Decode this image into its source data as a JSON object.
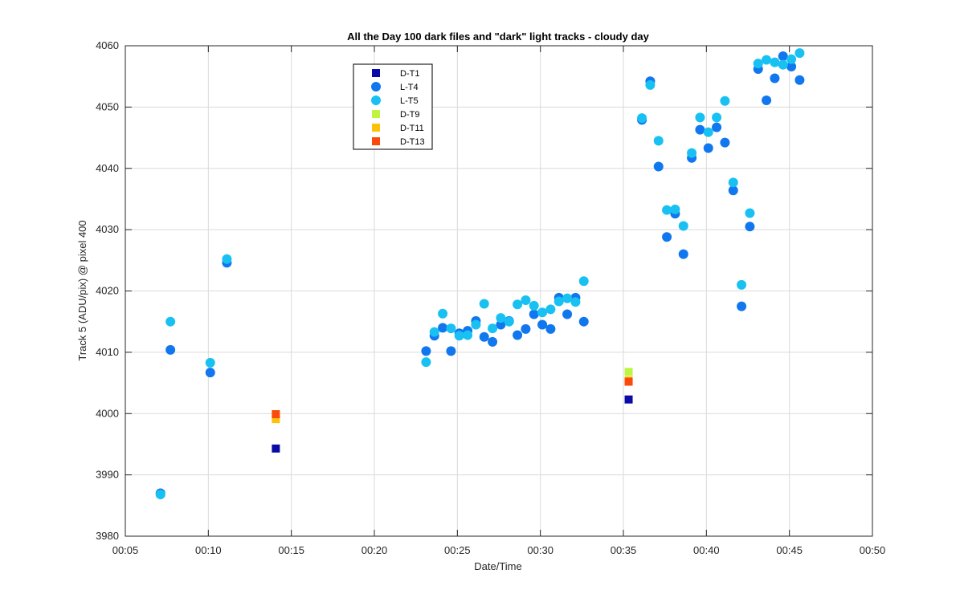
{
  "chart_data": {
    "type": "scatter",
    "title": "All the Day 100 dark files and \"dark\" light tracks  - cloudy day",
    "xlabel": "Date/Time",
    "ylabel": "Track 5 (ADU/pix) @ pixel 400",
    "xlim": [
      "00:05",
      "00:50"
    ],
    "ylim": [
      3980,
      4060
    ],
    "x_ticks": [
      "00:05",
      "00:10",
      "00:15",
      "00:20",
      "00:25",
      "00:30",
      "00:35",
      "00:40",
      "00:45",
      "00:50"
    ],
    "y_ticks": [
      3980,
      3990,
      4000,
      4010,
      4020,
      4030,
      4040,
      4050,
      4060
    ],
    "grid": true,
    "legend_position": "top-left",
    "series": [
      {
        "name": "D-T1",
        "marker": "square",
        "color": "#0a0aa6",
        "points": [
          [
            "00:14:04",
            3994.3
          ],
          [
            "00:35:19",
            4002.3
          ]
        ]
      },
      {
        "name": "L-T4",
        "marker": "circle",
        "color": "#1177ee",
        "points": [
          [
            "00:07:07",
            3987.0
          ],
          [
            "00:07:43",
            4010.4
          ],
          [
            "00:10:07",
            4006.7
          ],
          [
            "00:11:07",
            4024.6
          ],
          [
            "00:23:07",
            4010.2
          ],
          [
            "00:23:37",
            4012.7
          ],
          [
            "00:24:07",
            4014.0
          ],
          [
            "00:24:37",
            4010.2
          ],
          [
            "00:25:07",
            4013.1
          ],
          [
            "00:25:37",
            4013.5
          ],
          [
            "00:26:07",
            4015.1
          ],
          [
            "00:26:37",
            4012.5
          ],
          [
            "00:27:07",
            4011.7
          ],
          [
            "00:27:37",
            4014.5
          ],
          [
            "00:28:07",
            4015.1
          ],
          [
            "00:28:37",
            4012.8
          ],
          [
            "00:29:07",
            4013.8
          ],
          [
            "00:29:37",
            4016.2
          ],
          [
            "00:30:07",
            4014.5
          ],
          [
            "00:30:37",
            4013.8
          ],
          [
            "00:31:07",
            4018.9
          ],
          [
            "00:31:37",
            4016.2
          ],
          [
            "00:32:07",
            4018.9
          ],
          [
            "00:32:37",
            4015.0
          ],
          [
            "00:36:07",
            4047.9
          ],
          [
            "00:36:37",
            4054.2
          ],
          [
            "00:37:07",
            4040.3
          ],
          [
            "00:37:37",
            4028.8
          ],
          [
            "00:38:07",
            4032.6
          ],
          [
            "00:38:37",
            4026.0
          ],
          [
            "00:39:07",
            4041.7
          ],
          [
            "00:39:37",
            4046.3
          ],
          [
            "00:40:07",
            4043.3
          ],
          [
            "00:40:37",
            4046.7
          ],
          [
            "00:41:07",
            4044.2
          ],
          [
            "00:41:37",
            4036.4
          ],
          [
            "00:42:07",
            4017.5
          ],
          [
            "00:42:37",
            4030.5
          ],
          [
            "00:43:07",
            4056.2
          ],
          [
            "00:43:37",
            4051.1
          ],
          [
            "00:44:07",
            4054.7
          ],
          [
            "00:44:37",
            4058.3
          ],
          [
            "00:45:07",
            4056.6
          ],
          [
            "00:45:37",
            4054.4
          ]
        ]
      },
      {
        "name": "L-T5",
        "marker": "circle",
        "color": "#18c1f2",
        "points": [
          [
            "00:07:07",
            3986.8
          ],
          [
            "00:07:43",
            4015.0
          ],
          [
            "00:10:07",
            4008.3
          ],
          [
            "00:11:07",
            4025.2
          ],
          [
            "00:23:07",
            4008.4
          ],
          [
            "00:23:37",
            4013.3
          ],
          [
            "00:24:07",
            4016.3
          ],
          [
            "00:24:37",
            4013.9
          ],
          [
            "00:25:07",
            4012.7
          ],
          [
            "00:25:37",
            4012.8
          ],
          [
            "00:26:07",
            4014.5
          ],
          [
            "00:26:37",
            4017.9
          ],
          [
            "00:27:07",
            4013.9
          ],
          [
            "00:27:37",
            4015.6
          ],
          [
            "00:28:07",
            4015.0
          ],
          [
            "00:28:37",
            4017.8
          ],
          [
            "00:29:07",
            4018.5
          ],
          [
            "00:29:37",
            4017.6
          ],
          [
            "00:30:07",
            4016.5
          ],
          [
            "00:30:37",
            4017.0
          ],
          [
            "00:31:07",
            4018.3
          ],
          [
            "00:31:37",
            4018.8
          ],
          [
            "00:32:07",
            4018.2
          ],
          [
            "00:32:37",
            4021.6
          ],
          [
            "00:36:07",
            4048.2
          ],
          [
            "00:36:37",
            4053.6
          ],
          [
            "00:37:07",
            4044.5
          ],
          [
            "00:37:37",
            4033.2
          ],
          [
            "00:38:07",
            4033.3
          ],
          [
            "00:38:37",
            4030.6
          ],
          [
            "00:39:07",
            4042.5
          ],
          [
            "00:39:37",
            4048.3
          ],
          [
            "00:40:07",
            4045.9
          ],
          [
            "00:40:37",
            4048.3
          ],
          [
            "00:41:07",
            4051.0
          ],
          [
            "00:41:37",
            4037.7
          ],
          [
            "00:42:07",
            4021.0
          ],
          [
            "00:42:37",
            4032.7
          ],
          [
            "00:43:07",
            4057.1
          ],
          [
            "00:43:37",
            4057.7
          ],
          [
            "00:44:07",
            4057.3
          ],
          [
            "00:44:37",
            4056.9
          ],
          [
            "00:45:07",
            4057.8
          ],
          [
            "00:45:37",
            4058.8
          ]
        ]
      },
      {
        "name": "D-T9",
        "marker": "square",
        "color": "#bdf542",
        "points": [
          [
            "00:14:04",
            3999.3
          ],
          [
            "00:35:19",
            4006.8
          ]
        ]
      },
      {
        "name": "D-T11",
        "marker": "square",
        "color": "#fbc20a",
        "points": [
          [
            "00:14:04",
            3999.1
          ],
          [
            "00:35:19",
            4005.4
          ]
        ]
      },
      {
        "name": "D-T13",
        "marker": "square",
        "color": "#fb4a0c",
        "points": [
          [
            "00:14:04",
            3999.9
          ],
          [
            "00:35:19",
            4005.2
          ]
        ]
      }
    ]
  }
}
